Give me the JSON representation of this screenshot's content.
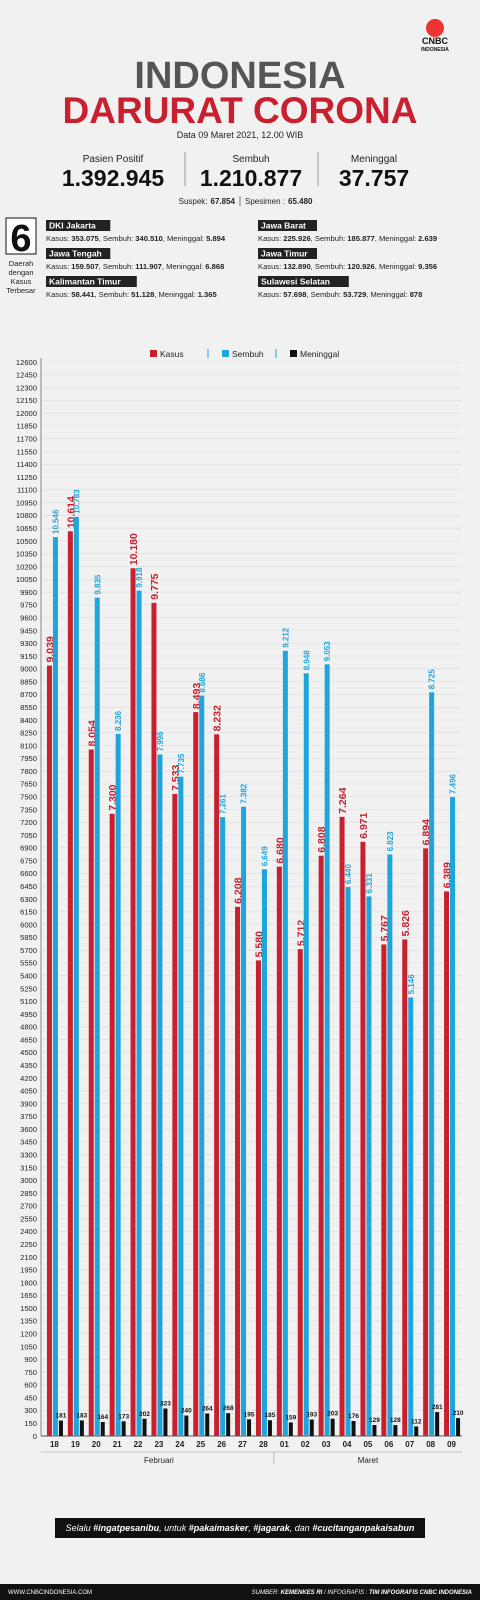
{
  "logo": {
    "brand": "CNBC",
    "sub": "INDONESIA"
  },
  "header": {
    "title1": "INDONESIA",
    "title2": "DARURAT CORONA",
    "date": "Data 09 Maret 2021, 12.00 WIB",
    "stats": [
      {
        "label": "Pasien Positif",
        "value": "1.392.945"
      },
      {
        "label": "Sembuh",
        "value": "1.210.877"
      },
      {
        "label": "Meninggal",
        "value": "37.757"
      }
    ],
    "extra": [
      {
        "label": "Suspek:",
        "value": "67.854"
      },
      {
        "label": "Spesimen :",
        "value": "65.480"
      }
    ]
  },
  "regions": {
    "count": "6",
    "caption": [
      "Daerah",
      "dengan",
      "Kasus",
      "Terbesar"
    ],
    "stat_labels": [
      "Kasus:",
      ", Sembuh:",
      ", Meninggal:"
    ],
    "items": [
      {
        "name": "DKI Jakarta",
        "kasus": "353.075",
        "sembuh": "340.510",
        "meninggal": "5.894"
      },
      {
        "name": "Jawa Barat",
        "kasus": "225.926",
        "sembuh": "185.877",
        "meninggal": "2.639"
      },
      {
        "name": "Jawa Tengah",
        "kasus": "159.507",
        "sembuh": "111.907",
        "meninggal": "6.868"
      },
      {
        "name": "Jawa Timur",
        "kasus": "132.890",
        "sembuh": "120.926",
        "meninggal": "9.356"
      },
      {
        "name": "Kalimantan Timur",
        "kasus": "58.441",
        "sembuh": "51.128",
        "meninggal": "1.365"
      },
      {
        "name": "Sulawesi Selatan",
        "kasus": "57.698",
        "sembuh": "53.729",
        "meninggal": "878"
      }
    ]
  },
  "chart_data": {
    "type": "bar",
    "grid": true,
    "legend": "top",
    "categories": [
      "18",
      "19",
      "20",
      "21",
      "22",
      "23",
      "24",
      "25",
      "26",
      "27",
      "28",
      "01",
      "02",
      "03",
      "04",
      "05",
      "06",
      "07",
      "08",
      "09"
    ],
    "x_group_labels": [
      "Februari",
      "Maret"
    ],
    "series": [
      {
        "name": "Kasus",
        "color": "#c8202f",
        "values": [
          9039,
          10614,
          8054,
          7300,
          10180,
          9775,
          7533,
          8493,
          8232,
          6208,
          5580,
          6680,
          5712,
          6808,
          7264,
          6971,
          5767,
          5826,
          6894,
          6389
        ],
        "value_labels": [
          "9.039",
          "10.614",
          "8.054",
          "7.300",
          "10.180",
          "9.775",
          "7.533",
          "8.493",
          "8.232",
          "6.208",
          "5.580",
          "6.680",
          "5.712",
          "6.808",
          "7.264",
          "6.971",
          "5.767",
          "5.826",
          "6.894",
          "6.389"
        ]
      },
      {
        "name": "Sembuh",
        "color": "#1ea5dc",
        "values": [
          10546,
          10783,
          9835,
          8236,
          9918,
          7996,
          7735,
          8686,
          7261,
          7382,
          6649,
          9212,
          8948,
          9053,
          6440,
          6331,
          6823,
          5146,
          8725,
          7496
        ],
        "value_labels": [
          "10.546",
          "10.783",
          "9.835",
          "8.236",
          "9.918",
          "7.996",
          "7.735",
          "8.686",
          "7.261",
          "7.382",
          "6.649",
          "9.212",
          "8.948",
          "9.053",
          "6.440",
          "6.331",
          "6.823",
          "5.146",
          "8.725",
          "7.496"
        ]
      },
      {
        "name": "Meninggal",
        "color": "#111111",
        "values": [
          181,
          183,
          164,
          173,
          202,
          323,
          240,
          264,
          268,
          195,
          185,
          159,
          193,
          203,
          176,
          129,
          128,
          112,
          281,
          210
        ]
      }
    ],
    "ylim": [
      0,
      12600
    ],
    "yticks": [
      0,
      150,
      300,
      450,
      600,
      750,
      900,
      1050,
      1200,
      1350,
      1500,
      1650,
      1800,
      1950,
      2100,
      2250,
      2400,
      2550,
      2700,
      2850,
      3000,
      3150,
      3300,
      3450,
      3600,
      3750,
      3900,
      4050,
      4200,
      4350,
      4500,
      4650,
      4800,
      4950,
      5100,
      5250,
      5400,
      5550,
      5700,
      5850,
      6000,
      6150,
      6300,
      6450,
      6600,
      6750,
      6900,
      7050,
      7200,
      7350,
      7500,
      7650,
      7800,
      7950,
      8100,
      8250,
      8400,
      8550,
      8700,
      8850,
      9000,
      9150,
      9300,
      9450,
      9600,
      9750,
      9900,
      10050,
      10200,
      10350,
      10500,
      10650,
      10800,
      10950,
      11100,
      11250,
      11400,
      11550,
      11700,
      11850,
      12000,
      12150,
      12300,
      12450,
      12600
    ]
  },
  "footer": {
    "slogan": [
      "Selalu ",
      "#ingatpesanibu",
      ", untuk ",
      "#pakaimasker",
      ", ",
      "#jagarak",
      ", dan ",
      "#cucitanganpakaisabun"
    ],
    "site": "WWW.CNBCINDONESIA.COM",
    "source_label": "SUMBER: ",
    "source": "KEMENKES RI",
    "credit_label": " / INFOGRAFIS : ",
    "credit": "TIM INFOGRAFIS CNBC INDONESIA"
  }
}
